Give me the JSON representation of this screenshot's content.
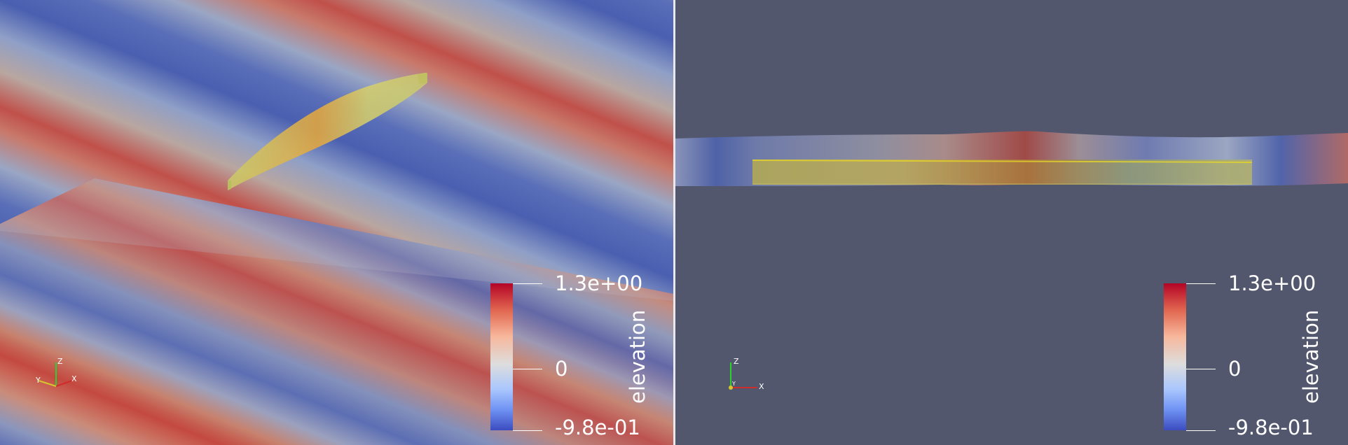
{
  "left_view": {
    "colorbar": {
      "title": "elevation",
      "max_label": "1.3e+00",
      "mid_label": "0",
      "min_label": "-9.8e-01"
    },
    "axes": {
      "x": "X",
      "y": "Y",
      "z": "Z"
    }
  },
  "right_view": {
    "colorbar": {
      "title": "elevation",
      "max_label": "1.3e+00",
      "mid_label": "0",
      "min_label": "-9.8e-01"
    },
    "axes": {
      "x": "X",
      "y": "Y",
      "z": "Z"
    }
  },
  "colors": {
    "background": "#52576e",
    "colormap_high": "#b40426",
    "colormap_mid": "#dddddd",
    "colormap_low": "#3b4cc0",
    "hull": "#d6d23a"
  }
}
